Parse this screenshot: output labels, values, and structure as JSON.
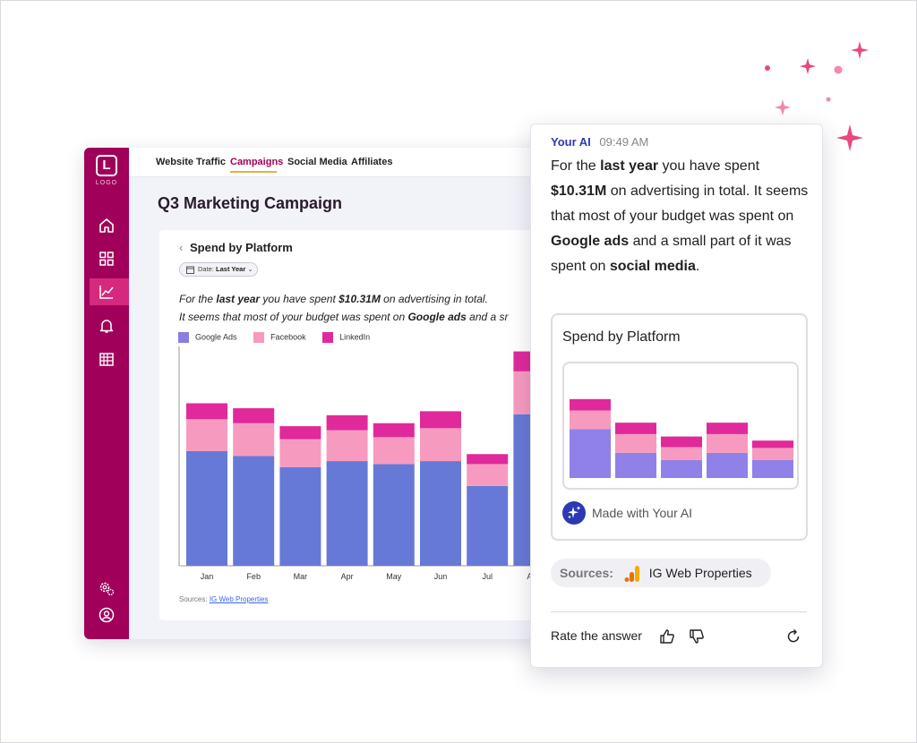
{
  "dashboard": {
    "logo_letter": "L",
    "logo_text": "LOGO",
    "tabs": [
      "Website Traffic",
      "Campaigns",
      "Social Media",
      "Affiliates"
    ],
    "active_tab": "Campaigns",
    "page_title": "Q3 Marketing Campaign",
    "card_title": "Spend by Platform",
    "date_label": "Date:",
    "date_value": "Last Year",
    "summary_line1_a": "For the ",
    "summary_line1_b": "last year",
    "summary_line1_c": " you have spent ",
    "summary_line1_d": "$10.31M",
    "summary_line1_e": " on advertising in total.",
    "summary_line2_a": "It seems that most of your budget was spent on ",
    "summary_line2_b": "Google ads",
    "summary_line2_c": " and a sr",
    "sources_label": "Sources:",
    "sources_link": "IG Web Properties"
  },
  "chart_data": {
    "type": "bar",
    "stacked": true,
    "title": "Spend by Platform",
    "categories": [
      "Jan",
      "Feb",
      "Mar",
      "Apr",
      "May",
      "Jun",
      "Jul",
      "Aug"
    ],
    "series": [
      {
        "name": "Google Ads",
        "color": "#6779d6",
        "values": [
          115,
          110,
          99,
          105,
          102,
          105,
          80,
          152
        ]
      },
      {
        "name": "Facebook",
        "color": "#f79ac0",
        "values": [
          32,
          33,
          28,
          31,
          27,
          33,
          22,
          43
        ]
      },
      {
        "name": "LinkedIn",
        "color": "#e0299a",
        "values": [
          16,
          15,
          13,
          15,
          14,
          17,
          10,
          20
        ]
      }
    ],
    "ylim": [
      0,
      220
    ],
    "grid": false,
    "legend": "top-left"
  },
  "ai_panel": {
    "name": "Your AI",
    "time": "09:49 AM",
    "msg_a": "For the ",
    "msg_b": "last year",
    "msg_c": " you have spent ",
    "msg_d": "$10.31M",
    "msg_e": " on advertising in total. It seems that most of your budget was spent on ",
    "msg_f": "Google ads",
    "msg_g": " and a small part of it was spent on ",
    "msg_h": "social media",
    "msg_i": ".",
    "card_title": "Spend by Platform",
    "made_with": "Made with Your AI",
    "sources_label": "Sources:",
    "sources_value": "IG Web Properties",
    "rate_label": "Rate the answer"
  },
  "mini_chart_data": {
    "type": "bar",
    "stacked": true,
    "series": [
      {
        "name": "Google Ads",
        "color": "#8f81e8",
        "values": [
          60,
          31,
          22,
          31,
          22
        ]
      },
      {
        "name": "Facebook",
        "color": "#f79ac0",
        "values": [
          23,
          23,
          16,
          23,
          15
        ]
      },
      {
        "name": "LinkedIn",
        "color": "#e0299a",
        "values": [
          14,
          14,
          13,
          14,
          9
        ]
      }
    ],
    "ylim": [
      0,
      110
    ]
  },
  "colors": {
    "brand": "#a0005a",
    "accent": "#d6287c",
    "ai_blue": "#2b39b5",
    "sparkle": "#e8477f"
  }
}
